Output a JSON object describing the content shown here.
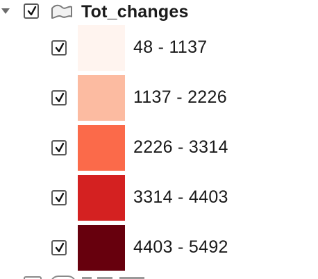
{
  "layer": {
    "name": "Tot_changes",
    "expanded": true,
    "visible": true,
    "icon": "polygon-layer-icon"
  },
  "classes": [
    {
      "label": "48 - 1137",
      "color": "#fff4ef",
      "checked": true
    },
    {
      "label": "1137 - 2226",
      "color": "#fcbba1",
      "checked": true
    },
    {
      "label": "2226 - 3314",
      "color": "#fb6a4a",
      "checked": true
    },
    {
      "label": "3314 - 4403",
      "color": "#d42121",
      "checked": true
    },
    {
      "label": "4403 - 5492",
      "color": "#67000d",
      "checked": true
    }
  ]
}
